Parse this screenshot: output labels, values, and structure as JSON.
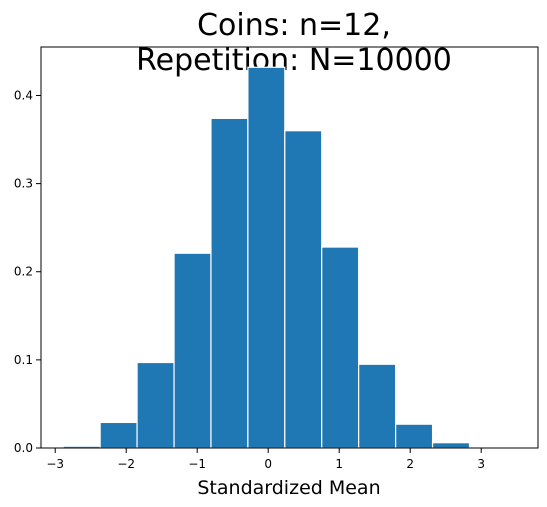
{
  "chart_data": {
    "type": "bar",
    "title_lines": [
      "Coins: n=12,",
      "Repetition: N=10000"
    ],
    "xlabel": "Standardized Mean",
    "ylabel": "",
    "xlim": [
      -3.2,
      3.8
    ],
    "ylim": [
      0.0,
      0.455
    ],
    "x_ticks": [
      -3,
      -2,
      -1,
      0,
      1,
      2,
      3
    ],
    "x_tick_labels": [
      "−3",
      "−2",
      "−1",
      "0",
      "1",
      "2",
      "3"
    ],
    "y_ticks": [
      0.0,
      0.1,
      0.2,
      0.3,
      0.4
    ],
    "y_tick_labels": [
      "0.0",
      "0.1",
      "0.2",
      "0.3",
      "0.4"
    ],
    "bins": [
      {
        "left": -2.887,
        "right": -2.367,
        "value": 0.002
      },
      {
        "left": -2.367,
        "right": -1.847,
        "value": 0.029
      },
      {
        "left": -1.847,
        "right": -1.326,
        "value": 0.097
      },
      {
        "left": -1.326,
        "right": -0.806,
        "value": 0.221
      },
      {
        "left": -0.806,
        "right": -0.286,
        "value": 0.374
      },
      {
        "left": -0.286,
        "right": 0.234,
        "value": 0.432
      },
      {
        "left": 0.234,
        "right": 0.754,
        "value": 0.36
      },
      {
        "left": 0.754,
        "right": 1.274,
        "value": 0.228
      },
      {
        "left": 1.274,
        "right": 1.795,
        "value": 0.095
      },
      {
        "left": 1.795,
        "right": 2.315,
        "value": 0.027
      },
      {
        "left": 2.315,
        "right": 2.835,
        "value": 0.006
      },
      {
        "left": 2.835,
        "right": 3.355,
        "value": 0.0005
      }
    ],
    "bar_color": "#1f77b4",
    "edge_color": "#ffffff",
    "grid": false,
    "legend": "none"
  }
}
